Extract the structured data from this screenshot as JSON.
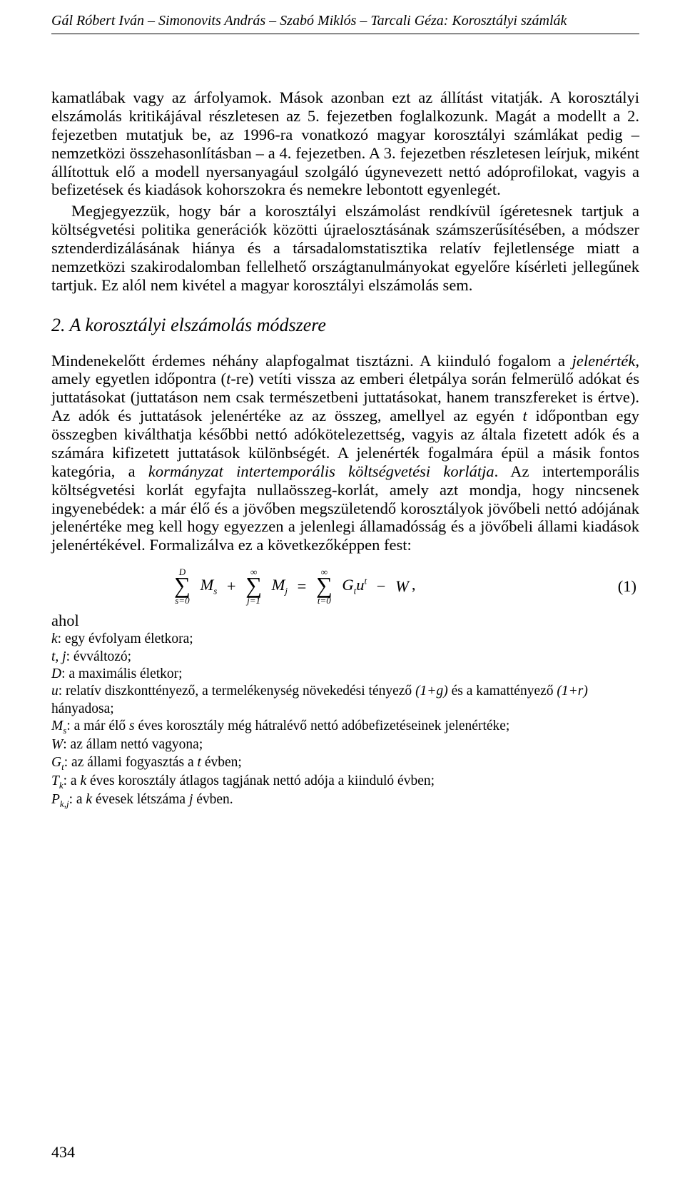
{
  "header": "Gál Róbert Iván – Simonovits András – Szabó Miklós – Tarcali Géza: Korosztályi számlák",
  "para1": "kamatlábak vagy az árfolyamok. Mások azonban ezt az állítást vitatják. A korosztályi elszámolás kritikájával részletesen az 5. fejezetben foglalkozunk. Magát a modellt a 2. fejezetben mutatjuk be, az 1996-ra vonatkozó magyar korosztályi számlákat pedig – nemzetközi összehasonlításban – a 4. fejezetben. A 3. fejezetben részletesen leírjuk, miként állítottuk elő a modell nyersanyagául szolgáló úgynevezett nettó adóprofilokat, vagyis a befizetések és kiadások kohorszokra és nemekre lebontott egyenlegét.",
  "para2": "Megjegyezzük, hogy bár a korosztályi elszámolást rendkívül ígéretesnek tartjuk a költségvetési politika generációk közötti újraelosztásának számszerűsítésében, a módszer sztenderdizálásának hiánya és a társadalomstatisztika relatív fejletlensége miatt a nemzetközi szakirodalomban fellelhető országtanulmányokat egyelőre kísérleti jellegűnek tartjuk. Ez alól nem kivétel a magyar korosztályi elszámolás sem.",
  "section_heading": "2. A korosztályi elszámolás módszere",
  "para3_first": "Mindenekelőtt érdemes néhány alapfogalmat tisztázni. A kiinduló fogalom a ",
  "para3_main": ", amely egyetlen időpontra (",
  "para3_mid_a": "-re) vetíti vissza az emberi életpálya során felmerülő adókat és juttatásokat (juttatáson nem csak természetbeni juttatásokat, hanem transzfereket is értve). Az adók és juttatások jelenértéke az az összeg, amellyel az egyén ",
  "para3_mid_b": " időpontban egy összegben kiválthatja későbbi nettó adókötelezettség, vagyis az általa fizetett adók és a számára kifizetett juttatások különbségét. A jelenérték fogalmára épül a másik fontos kategória, a ",
  "para3_tail": ". Az intertemporális költségvetési korlát egyfajta nullaösszeg-korlát, amely azt mondja, hogy nincsenek ingyenebédek: a már élő és a jövőben megszületendő korosztályok jövőbeli nettó adójának jelenértéke meg kell hogy egyezzen a jelenlegi államadósság és a jövőbeli állami kiadások jelenértékével. Formalizálva ez a következőképpen fest:",
  "para3_it1": "jelenérték",
  "para3_t": "t",
  "para3_it2": "kormányzat intertemporális költségvetési korlátja",
  "eq_num": "(1)",
  "defs_intro": "ahol",
  "def_k1": "k",
  "def_k2": ": egy évfolyam életkora;",
  "def_tj1": "t, j",
  "def_tj2": ": évváltozó;",
  "def_D1": "D",
  "def_D2": ": a maximális életkor;",
  "def_u1": "u",
  "def_u2": ": relatív diszkonttényező, a termelékenység növekedési tényező ",
  "def_u3": "(1+g)",
  "def_u4": " és a kamattényező ",
  "def_u5": "(1+r)",
  "def_u6": "hányadosa;",
  "def_Ms1": "M",
  "def_Ms2": ": a már élő ",
  "def_Ms3": "s",
  "def_Ms4": " éves korosztály még hátralévő nettó adóbefizetéseinek jelenértéke;",
  "def_W1": "W",
  "def_W2": ": az állam nettó vagyona;",
  "def_Gt1": "G",
  "def_Gt2": ": az állami fogyasztás a ",
  "def_Gt3": "t",
  "def_Gt4": " évben;",
  "def_Tk1": "T",
  "def_Tk2": ": a ",
  "def_Tk3": "k",
  "def_Tk4": " éves korosztály átlagos tagjának nettó adója a kiinduló évben;",
  "def_Pkj1": "P",
  "def_Pkj2": ": a ",
  "def_Pkj3": "k",
  "def_Pkj4": " évesek létszáma ",
  "def_Pkj5": "j",
  "def_Pkj6": " évben.",
  "pagenum": "434"
}
